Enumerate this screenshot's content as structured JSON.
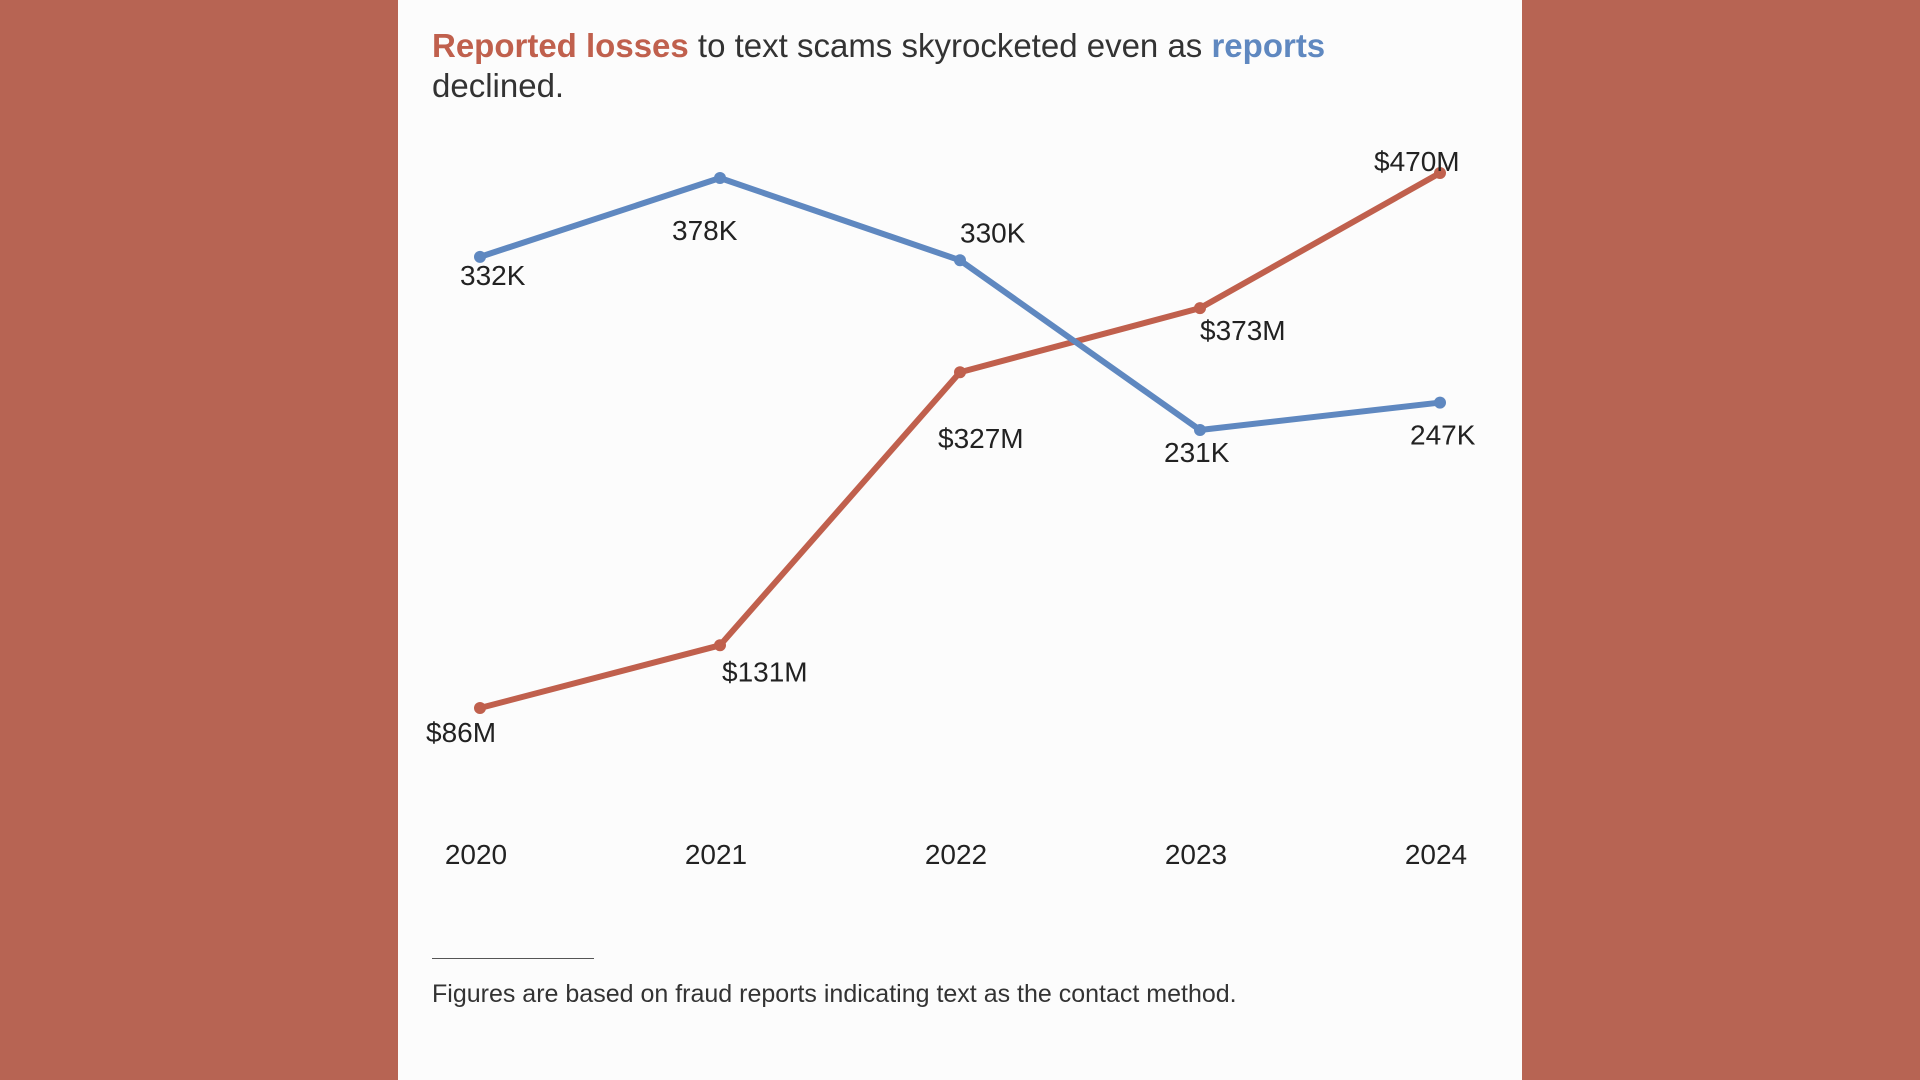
{
  "colors": {
    "background": "#b76453",
    "panel": "#fcfcfc",
    "losses": "#c0604d",
    "reports": "#5f88c0"
  },
  "headline": {
    "part1": "Reported losses",
    "part2": " to text scams skyrocketed even as ",
    "part3": "reports",
    "part4": " declined."
  },
  "chart_data": {
    "type": "line",
    "x": [
      "2020",
      "2021",
      "2022",
      "2023",
      "2024"
    ],
    "series": [
      {
        "key": "reports",
        "values": [
          332,
          378,
          330,
          231,
          247
        ],
        "unit": "K",
        "labels": [
          "332K",
          "378K",
          "330K",
          "231K",
          "247K"
        ],
        "color": "#5f88c0"
      },
      {
        "key": "losses",
        "values": [
          86,
          131,
          327,
          373,
          470
        ],
        "unit": "$M",
        "labels": [
          "$86M",
          "$131M",
          "$327M",
          "$373M",
          "$470M"
        ],
        "color": "#c0604d"
      }
    ],
    "grid": false,
    "legend": "none (colored words in title)"
  },
  "footnote": "Figures are based on fraud reports indicating text as the contact method."
}
